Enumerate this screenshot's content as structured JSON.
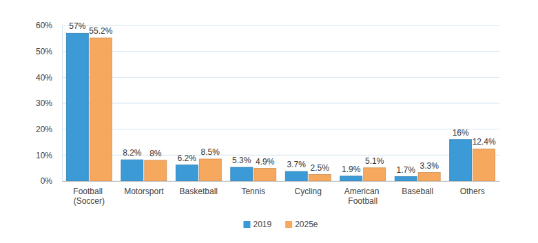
{
  "chart_data": {
    "type": "bar",
    "categories": [
      "Football (Soccer)",
      "Motorsport",
      "Basketball",
      "Tennis",
      "Cycling",
      "American Football",
      "Baseball",
      "Others"
    ],
    "series": [
      {
        "name": "2019",
        "color": "#3C9AD6",
        "values": [
          57,
          8.2,
          6.2,
          5.3,
          3.7,
          1.9,
          1.7,
          16
        ],
        "value_labels": [
          "57%",
          "8.2%",
          "6.2%",
          "5.3%",
          "3.7%",
          "1.9%",
          "1.7%",
          "16%"
        ]
      },
      {
        "name": "2025e",
        "color": "#F7A85F",
        "values": [
          55.2,
          8,
          8.5,
          4.9,
          2.5,
          5.1,
          3.3,
          12.4
        ],
        "value_labels": [
          "55.2%",
          "8%",
          "8.5%",
          "4.9%",
          "2.5%",
          "5.1%",
          "3.3%",
          "12.4%"
        ]
      }
    ],
    "ylim": [
      0,
      60
    ],
    "yticks": [
      {
        "value": 0,
        "label": "0%"
      },
      {
        "value": 10,
        "label": "10%"
      },
      {
        "value": 20,
        "label": "20%"
      },
      {
        "value": 30,
        "label": "30%"
      },
      {
        "value": 40,
        "label": "40%"
      },
      {
        "value": 50,
        "label": "50%"
      },
      {
        "value": 60,
        "label": "60%"
      }
    ],
    "grid": true,
    "legend": "bottom",
    "data_labels": true
  }
}
